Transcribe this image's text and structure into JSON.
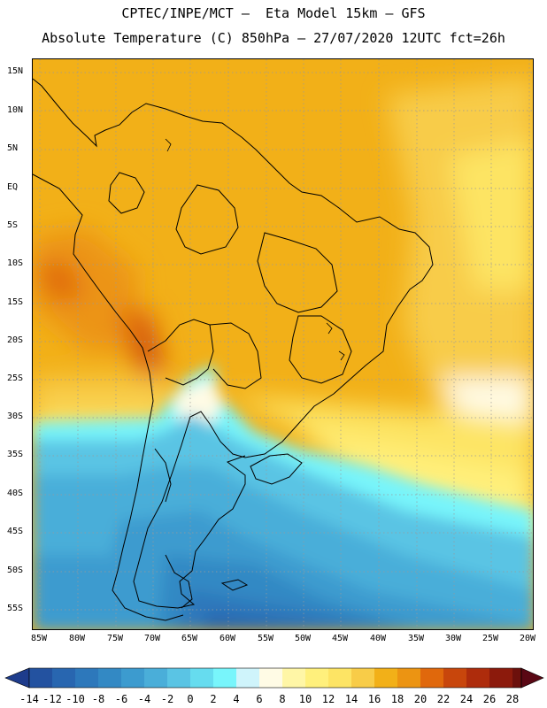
{
  "title_line1": "CPTEC/INPE/MCT –  Eta Model 15km – GFS",
  "title_line2": "Absolute Temperature (C) 850hPa – 27/07/2020 12UTC fct=26h",
  "lat_labels": [
    "15N",
    "10N",
    "5N",
    "EQ",
    "5S",
    "10S",
    "15S",
    "20S",
    "25S",
    "30S",
    "35S",
    "40S",
    "45S",
    "50S",
    "55S"
  ],
  "lon_labels": [
    "85W",
    "80W",
    "75W",
    "70W",
    "65W",
    "60W",
    "55W",
    "50W",
    "45W",
    "40W",
    "35W",
    "30W",
    "25W",
    "20W"
  ],
  "colorbar": {
    "labels": [
      "-14",
      "-12",
      "-10",
      "-8",
      "-6",
      "-4",
      "-2",
      "0",
      "2",
      "4",
      "6",
      "8",
      "10",
      "12",
      "14",
      "16",
      "18",
      "20",
      "22",
      "24",
      "26",
      "28"
    ],
    "colors": [
      "#1e3c8c",
      "#2352a0",
      "#2866b0",
      "#2d78bb",
      "#3389c4",
      "#3c9bcf",
      "#4aaed9",
      "#5ac4e4",
      "#66dcef",
      "#78f5fb",
      "#cff4fb",
      "#fffbe5",
      "#fff6a6",
      "#fff07c",
      "#fde464",
      "#f8cc48",
      "#f2b018",
      "#ec9412",
      "#e0680c",
      "#c8460c",
      "#ae2c0c",
      "#8c1a0c",
      "#6c100c",
      "#5a0814"
    ]
  }
}
